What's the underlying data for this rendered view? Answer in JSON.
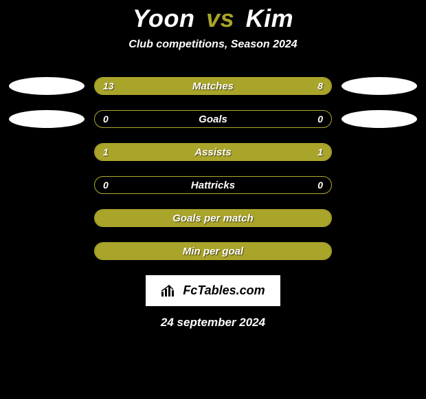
{
  "title": {
    "player1": "Yoon",
    "vs": "vs",
    "player2": "Kim"
  },
  "subtitle": "Club competitions, Season 2024",
  "colors": {
    "background": "#000000",
    "accent": "#a9a42a",
    "text": "#ffffff",
    "logo_bg": "#ffffff",
    "logo_text": "#000000"
  },
  "rows": [
    {
      "label": "Matches",
      "left": "13",
      "right": "8",
      "leftFillPct": 62,
      "rightFillPct": 38,
      "showLeftPhoto": true,
      "showRightPhoto": true,
      "showValues": true
    },
    {
      "label": "Goals",
      "left": "0",
      "right": "0",
      "leftFillPct": 0,
      "rightFillPct": 0,
      "showLeftPhoto": true,
      "showRightPhoto": true,
      "showValues": true
    },
    {
      "label": "Assists",
      "left": "1",
      "right": "1",
      "leftFillPct": 50,
      "rightFillPct": 50,
      "showLeftPhoto": false,
      "showRightPhoto": false,
      "showValues": true
    },
    {
      "label": "Hattricks",
      "left": "0",
      "right": "0",
      "leftFillPct": 0,
      "rightFillPct": 0,
      "showLeftPhoto": false,
      "showRightPhoto": false,
      "showValues": true
    },
    {
      "label": "Goals per match",
      "left": "",
      "right": "",
      "leftFillPct": 100,
      "rightFillPct": 0,
      "showLeftPhoto": false,
      "showRightPhoto": false,
      "showValues": false
    },
    {
      "label": "Min per goal",
      "left": "",
      "right": "",
      "leftFillPct": 100,
      "rightFillPct": 0,
      "showLeftPhoto": false,
      "showRightPhoto": false,
      "showValues": false
    }
  ],
  "logo_text": "FcTables.com",
  "date": "24 september 2024"
}
